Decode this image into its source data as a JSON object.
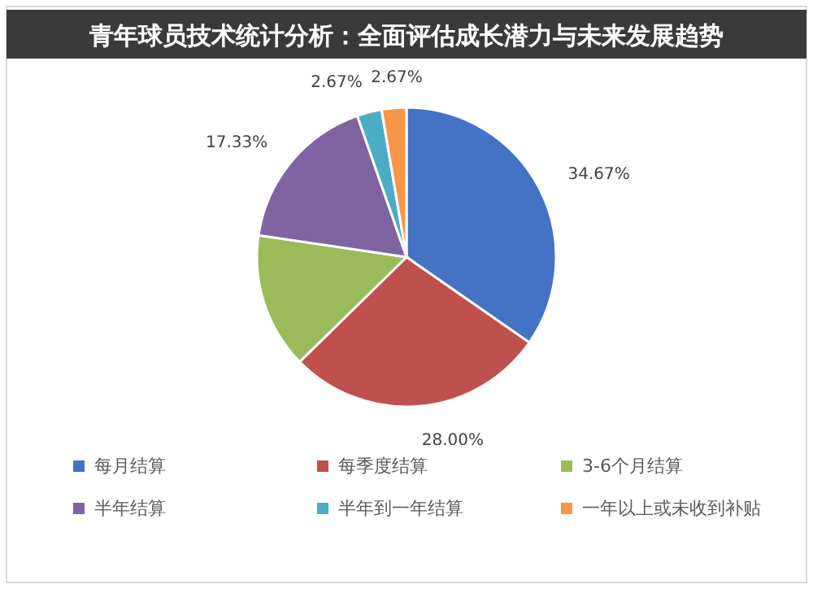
{
  "chart_data": {
    "type": "pie",
    "title": "青年球员技术统计分析：全面评估成长潜力与未来发展趋势",
    "categories": [
      "每月结算",
      "每季度结算",
      "3-6个月结算",
      "半年结算",
      "半年到一年结算",
      "一年以上或未收到补贴"
    ],
    "values": [
      34.67,
      28.0,
      14.67,
      17.33,
      2.67,
      2.67
    ],
    "value_labels": [
      "34.67%",
      "28.00%",
      null,
      "17.33%",
      "2.67%",
      "2.67%"
    ],
    "colors": [
      "#4472c4",
      "#c0504d",
      "#9bbb59",
      "#8064a2",
      "#4bacc6",
      "#f79646"
    ],
    "legend": "bottom"
  }
}
